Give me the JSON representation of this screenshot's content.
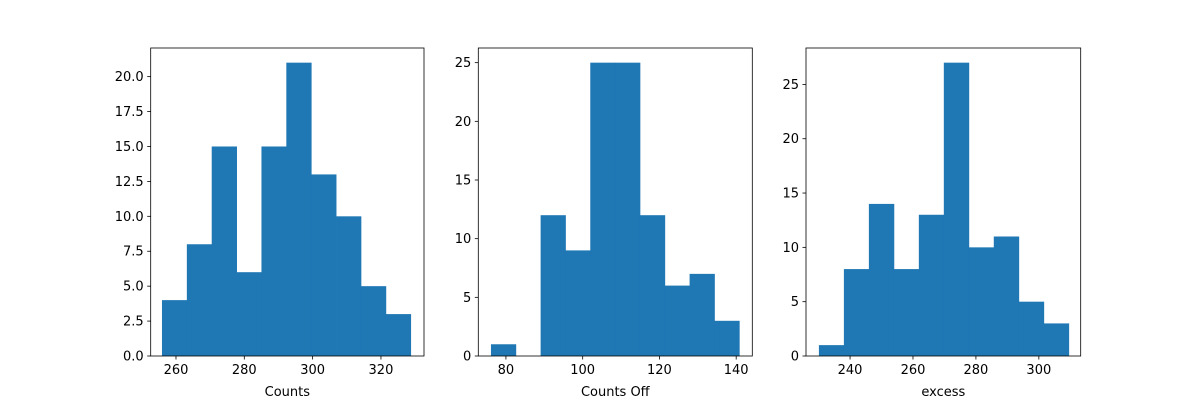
{
  "chart_data": [
    {
      "type": "bar",
      "subtype": "histogram",
      "title": "",
      "xlabel": "Counts",
      "ylabel": "",
      "bin_edges_range": [
        255.9,
        328.7
      ],
      "values": [
        4,
        8,
        15,
        6,
        15,
        21,
        13,
        10,
        5,
        3
      ],
      "xlim": [
        252.6,
        332.6
      ],
      "ylim": [
        0,
        22.05
      ],
      "xticks": [
        260,
        280,
        300,
        320
      ],
      "yticks": [
        0,
        2.5,
        5,
        7.5,
        10,
        12.5,
        15,
        17.5,
        20
      ],
      "ytick_labels": [
        "0.0",
        "2.5",
        "5.0",
        "7.5",
        "10.0",
        "12.5",
        "15.0",
        "17.5",
        "20.0"
      ],
      "color": "#1f77b4",
      "grid": false
    },
    {
      "type": "bar",
      "subtype": "histogram",
      "title": "",
      "xlabel": "Counts Off",
      "ylabel": "",
      "bin_edges_range": [
        76.1,
        140.8
      ],
      "values": [
        1,
        0,
        12,
        9,
        25,
        25,
        12,
        6,
        7,
        3
      ],
      "xlim": [
        72.8,
        144.2
      ],
      "ylim": [
        0,
        26.25
      ],
      "xticks": [
        80,
        100,
        120,
        140
      ],
      "yticks": [
        0,
        5,
        10,
        15,
        20,
        25
      ],
      "ytick_labels": [
        "0",
        "5",
        "10",
        "15",
        "20",
        "25"
      ],
      "color": "#1f77b4",
      "grid": false
    },
    {
      "type": "bar",
      "subtype": "histogram",
      "title": "",
      "xlabel": "excess",
      "ylabel": "",
      "bin_edges_range": [
        230.1,
        309.5
      ],
      "values": [
        1,
        8,
        14,
        8,
        13,
        27,
        10,
        11,
        5,
        3
      ],
      "xlim": [
        226.0,
        313.3
      ],
      "ylim": [
        0,
        28.35
      ],
      "xticks": [
        240,
        260,
        280,
        300
      ],
      "yticks": [
        0,
        5,
        10,
        15,
        20,
        25
      ],
      "ytick_labels": [
        "0",
        "5",
        "10",
        "15",
        "20",
        "25"
      ],
      "color": "#1f77b4",
      "grid": false
    }
  ]
}
